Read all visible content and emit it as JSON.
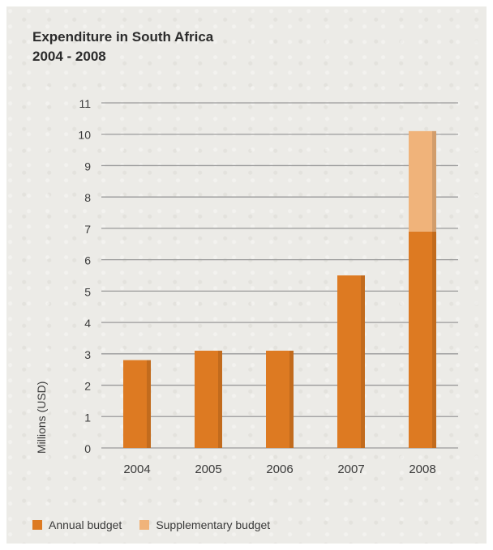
{
  "colors": {
    "annual": "#dd7a22",
    "supplementary": "#f0b37a",
    "grid": "#9a9a9a",
    "text": "#3a3a3a"
  },
  "chart_data": {
    "type": "bar",
    "stacked": true,
    "title": "Expenditure in South Africa",
    "subtitle": "2004 - 2008",
    "ylabel": "Millions (USD)",
    "xlabel": "",
    "categories": [
      "2004",
      "2005",
      "2006",
      "2007",
      "2008"
    ],
    "series": [
      {
        "name": "Annual budget",
        "values": [
          2.8,
          3.1,
          3.1,
          5.5,
          6.9
        ]
      },
      {
        "name": "Supplementary budget",
        "values": [
          0,
          0,
          0,
          0,
          3.2
        ]
      }
    ],
    "ylim": [
      0,
      11
    ],
    "yticks": [
      "0",
      "1",
      "2",
      "3",
      "4",
      "5",
      "6",
      "7",
      "8",
      "9",
      "10",
      "11"
    ],
    "grid": true,
    "legend_position": "bottom-left"
  }
}
